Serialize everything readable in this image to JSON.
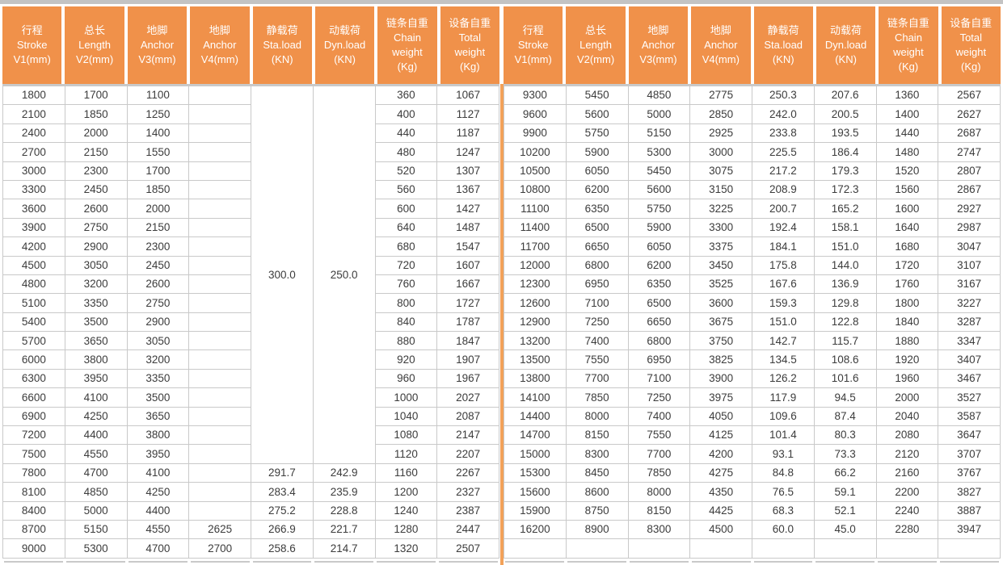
{
  "table": {
    "colors": {
      "header_bg": "#F0914A",
      "divider": "#F2A159",
      "top_bar": "#C3C3C3",
      "grid": "#C9C9C9",
      "text": "#3C3C3C",
      "header_text": "#FFFFFF"
    },
    "columns": [
      {
        "key": "stroke",
        "lines": [
          "行程",
          "Stroke",
          "V1(mm)"
        ]
      },
      {
        "key": "length",
        "lines": [
          "总长",
          "Length",
          "V2(mm)"
        ]
      },
      {
        "key": "anchor-v3",
        "lines": [
          "地脚",
          "Anchor",
          "V3(mm)"
        ]
      },
      {
        "key": "anchor-v4",
        "lines": [
          "地脚",
          "Anchor",
          "V4(mm)"
        ]
      },
      {
        "key": "sta-load",
        "lines": [
          "静载荷",
          "Sta.load",
          "(KN)"
        ]
      },
      {
        "key": "dyn-load",
        "lines": [
          "动载荷",
          "Dyn.load",
          "(KN)"
        ]
      },
      {
        "key": "chain-weight",
        "lines": [
          "链条自重",
          "Chain",
          "weight",
          "(Kg)"
        ]
      },
      {
        "key": "total-weight",
        "lines": [
          "设备自重",
          "Total",
          "weight",
          "(Kg)"
        ]
      }
    ],
    "left": {
      "merged_cells": [
        {
          "col": 4,
          "row_start": 0,
          "row_span": 20,
          "value": "300.0"
        },
        {
          "col": 5,
          "row_start": 0,
          "row_span": 20,
          "value": "250.0"
        }
      ],
      "rows": [
        [
          "1800",
          "1700",
          "1100",
          "",
          "",
          "",
          "360",
          "1067"
        ],
        [
          "2100",
          "1850",
          "1250",
          "",
          "",
          "",
          "400",
          "1127"
        ],
        [
          "2400",
          "2000",
          "1400",
          "",
          "",
          "",
          "440",
          "1187"
        ],
        [
          "2700",
          "2150",
          "1550",
          "",
          "",
          "",
          "480",
          "1247"
        ],
        [
          "3000",
          "2300",
          "1700",
          "",
          "",
          "",
          "520",
          "1307"
        ],
        [
          "3300",
          "2450",
          "1850",
          "",
          "",
          "",
          "560",
          "1367"
        ],
        [
          "3600",
          "2600",
          "2000",
          "",
          "",
          "",
          "600",
          "1427"
        ],
        [
          "3900",
          "2750",
          "2150",
          "",
          "",
          "",
          "640",
          "1487"
        ],
        [
          "4200",
          "2900",
          "2300",
          "",
          "",
          "",
          "680",
          "1547"
        ],
        [
          "4500",
          "3050",
          "2450",
          "",
          "",
          "",
          "720",
          "1607"
        ],
        [
          "4800",
          "3200",
          "2600",
          "",
          "",
          "",
          "760",
          "1667"
        ],
        [
          "5100",
          "3350",
          "2750",
          "",
          "",
          "",
          "800",
          "1727"
        ],
        [
          "5400",
          "3500",
          "2900",
          "",
          "",
          "",
          "840",
          "1787"
        ],
        [
          "5700",
          "3650",
          "3050",
          "",
          "",
          "",
          "880",
          "1847"
        ],
        [
          "6000",
          "3800",
          "3200",
          "",
          "",
          "",
          "920",
          "1907"
        ],
        [
          "6300",
          "3950",
          "3350",
          "",
          "",
          "",
          "960",
          "1967"
        ],
        [
          "6600",
          "4100",
          "3500",
          "",
          "",
          "",
          "1000",
          "2027"
        ],
        [
          "6900",
          "4250",
          "3650",
          "",
          "",
          "",
          "1040",
          "2087"
        ],
        [
          "7200",
          "4400",
          "3800",
          "",
          "",
          "",
          "1080",
          "2147"
        ],
        [
          "7500",
          "4550",
          "3950",
          "",
          "",
          "",
          "1120",
          "2207"
        ],
        [
          "7800",
          "4700",
          "4100",
          "",
          "291.7",
          "242.9",
          "1160",
          "2267"
        ],
        [
          "8100",
          "4850",
          "4250",
          "",
          "283.4",
          "235.9",
          "1200",
          "2327"
        ],
        [
          "8400",
          "5000",
          "4400",
          "",
          "275.2",
          "228.8",
          "1240",
          "2387"
        ],
        [
          "8700",
          "5150",
          "4550",
          "2625",
          "266.9",
          "221.7",
          "1280",
          "2447"
        ],
        [
          "9000",
          "5300",
          "4700",
          "2700",
          "258.6",
          "214.7",
          "1320",
          "2507"
        ]
      ]
    },
    "right": {
      "merged_cells": [],
      "rows": [
        [
          "9300",
          "5450",
          "4850",
          "2775",
          "250.3",
          "207.6",
          "1360",
          "2567"
        ],
        [
          "9600",
          "5600",
          "5000",
          "2850",
          "242.0",
          "200.5",
          "1400",
          "2627"
        ],
        [
          "9900",
          "5750",
          "5150",
          "2925",
          "233.8",
          "193.5",
          "1440",
          "2687"
        ],
        [
          "10200",
          "5900",
          "5300",
          "3000",
          "225.5",
          "186.4",
          "1480",
          "2747"
        ],
        [
          "10500",
          "6050",
          "5450",
          "3075",
          "217.2",
          "179.3",
          "1520",
          "2807"
        ],
        [
          "10800",
          "6200",
          "5600",
          "3150",
          "208.9",
          "172.3",
          "1560",
          "2867"
        ],
        [
          "11100",
          "6350",
          "5750",
          "3225",
          "200.7",
          "165.2",
          "1600",
          "2927"
        ],
        [
          "11400",
          "6500",
          "5900",
          "3300",
          "192.4",
          "158.1",
          "1640",
          "2987"
        ],
        [
          "11700",
          "6650",
          "6050",
          "3375",
          "184.1",
          "151.0",
          "1680",
          "3047"
        ],
        [
          "12000",
          "6800",
          "6200",
          "3450",
          "175.8",
          "144.0",
          "1720",
          "3107"
        ],
        [
          "12300",
          "6950",
          "6350",
          "3525",
          "167.6",
          "136.9",
          "1760",
          "3167"
        ],
        [
          "12600",
          "7100",
          "6500",
          "3600",
          "159.3",
          "129.8",
          "1800",
          "3227"
        ],
        [
          "12900",
          "7250",
          "6650",
          "3675",
          "151.0",
          "122.8",
          "1840",
          "3287"
        ],
        [
          "13200",
          "7400",
          "6800",
          "3750",
          "142.7",
          "115.7",
          "1880",
          "3347"
        ],
        [
          "13500",
          "7550",
          "6950",
          "3825",
          "134.5",
          "108.6",
          "1920",
          "3407"
        ],
        [
          "13800",
          "7700",
          "7100",
          "3900",
          "126.2",
          "101.6",
          "1960",
          "3467"
        ],
        [
          "14100",
          "7850",
          "7250",
          "3975",
          "117.9",
          "94.5",
          "2000",
          "3527"
        ],
        [
          "14400",
          "8000",
          "7400",
          "4050",
          "109.6",
          "87.4",
          "2040",
          "3587"
        ],
        [
          "14700",
          "8150",
          "7550",
          "4125",
          "101.4",
          "80.3",
          "2080",
          "3647"
        ],
        [
          "15000",
          "8300",
          "7700",
          "4200",
          "93.1",
          "73.3",
          "2120",
          "3707"
        ],
        [
          "15300",
          "8450",
          "7850",
          "4275",
          "84.8",
          "66.2",
          "2160",
          "3767"
        ],
        [
          "15600",
          "8600",
          "8000",
          "4350",
          "76.5",
          "59.1",
          "2200",
          "3827"
        ],
        [
          "15900",
          "8750",
          "8150",
          "4425",
          "68.3",
          "52.1",
          "2240",
          "3887"
        ],
        [
          "16200",
          "8900",
          "8300",
          "4500",
          "60.0",
          "45.0",
          "2280",
          "3947"
        ],
        [
          "",
          "",
          "",
          "",
          "",
          "",
          "",
          ""
        ]
      ]
    }
  }
}
